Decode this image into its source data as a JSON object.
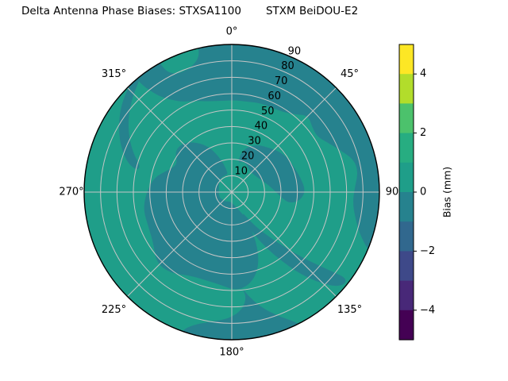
{
  "figure": {
    "title_left": "Delta Antenna Phase Biases: STXSA1100",
    "title_right": "STXM BeiDOU-E2",
    "background": "#ffffff"
  },
  "chart_data": {
    "type": "heatmap",
    "projection": "polar",
    "description": "Polar filled-contour (sky plot) of delta antenna phase bias vs azimuth (0-360 deg, clockwise from top) and radial coordinate 0-90. Nearly the whole disk lies in the 0..1 mm band (green) with large -1..0 mm regions (dark teal).",
    "units": "mm",
    "grid_on": true,
    "grid_color": "#c6c6c6",
    "outline_color": "#000000",
    "radial_axis": {
      "ticks": [
        10,
        20,
        30,
        40,
        50,
        60,
        70,
        80,
        90
      ],
      "max": 90,
      "label_angle_deg": 24
    },
    "angular_axis": {
      "ticks": [
        {
          "deg": 0,
          "label": "0°"
        },
        {
          "deg": 45,
          "label": "45°"
        },
        {
          "deg": 90,
          "label": "90"
        },
        {
          "deg": 135,
          "label": "135°"
        },
        {
          "deg": 180,
          "label": "180°"
        },
        {
          "deg": 225,
          "label": "225°"
        },
        {
          "deg": 270,
          "label": "270°"
        },
        {
          "deg": 315,
          "label": "315°"
        }
      ]
    },
    "colorbar": {
      "label": "Bias (mm)",
      "min": -5,
      "max": 5,
      "ticks": [
        {
          "value": 4,
          "label": "4"
        },
        {
          "value": 2,
          "label": "2"
        },
        {
          "value": 0,
          "label": "0"
        },
        {
          "value": -2,
          "label": "−2"
        },
        {
          "value": -4,
          "label": "−4"
        }
      ],
      "bands_top_to_bottom": [
        {
          "range": [
            4,
            5
          ],
          "color": "#fde725"
        },
        {
          "range": [
            3,
            4
          ],
          "color": "#b2dd2b"
        },
        {
          "range": [
            2,
            3
          ],
          "color": "#4cc26c"
        },
        {
          "range": [
            1,
            2
          ],
          "color": "#27ad81"
        },
        {
          "range": [
            0,
            1
          ],
          "color": "#1f9e89"
        },
        {
          "range": [
            -1,
            0
          ],
          "color": "#26828e"
        },
        {
          "range": [
            -2,
            -1
          ],
          "color": "#31688e"
        },
        {
          "range": [
            -3,
            -2
          ],
          "color": "#3e4989"
        },
        {
          "range": [
            -4,
            -3
          ],
          "color": "#482878"
        },
        {
          "range": [
            -5,
            -4
          ],
          "color": "#440154"
        }
      ]
    },
    "base_region": {
      "value_range": [
        0,
        1
      ],
      "color": "#1f9e89"
    },
    "regions": [
      {
        "name": "north-outer-ring",
        "value_range": [
          -1,
          0
        ],
        "color": "#26828e",
        "points": [
          [
            320,
            95
          ],
          [
            335,
            95
          ],
          [
            350,
            95
          ],
          [
            5,
            95
          ],
          [
            20,
            95
          ],
          [
            35,
            95
          ],
          [
            50,
            95
          ],
          [
            65,
            95
          ],
          [
            80,
            95
          ],
          [
            95,
            95
          ],
          [
            110,
            95
          ],
          [
            113,
            95
          ],
          [
            113,
            90
          ],
          [
            108,
            82
          ],
          [
            102,
            77
          ],
          [
            95,
            74
          ],
          [
            88,
            75
          ],
          [
            81,
            78
          ],
          [
            75,
            77
          ],
          [
            69,
            71
          ],
          [
            63,
            66
          ],
          [
            57,
            62
          ],
          [
            51,
            63
          ],
          [
            45,
            66
          ],
          [
            39,
            61
          ],
          [
            33,
            58
          ],
          [
            26,
            57
          ],
          [
            18,
            57
          ],
          [
            10,
            56
          ],
          [
            2,
            56
          ],
          [
            354,
            56
          ],
          [
            346,
            57
          ],
          [
            338,
            60
          ],
          [
            331,
            63
          ],
          [
            327,
            67
          ],
          [
            323,
            73
          ],
          [
            321,
            80
          ],
          [
            320,
            86
          ]
        ]
      },
      {
        "name": "north-rim-green-notch",
        "value_range": [
          0,
          1
        ],
        "color": "#1f9e89",
        "points": [
          [
            331,
            95
          ],
          [
            331,
            86
          ],
          [
            333,
            81
          ],
          [
            337,
            79
          ],
          [
            342,
            80
          ],
          [
            346,
            84
          ],
          [
            347,
            89
          ],
          [
            347,
            95
          ]
        ]
      },
      {
        "name": "northwest-finger",
        "value_range": [
          -1,
          0
        ],
        "color": "#26828e",
        "points": [
          [
            320,
            88
          ],
          [
            314,
            84
          ],
          [
            306,
            78
          ],
          [
            298,
            71
          ],
          [
            291,
            64
          ],
          [
            286,
            58
          ],
          [
            283,
            59
          ],
          [
            285,
            65
          ],
          [
            291,
            72
          ],
          [
            299,
            79
          ],
          [
            307,
            85
          ],
          [
            314,
            89
          ],
          [
            318,
            91
          ],
          [
            321,
            90
          ]
        ]
      },
      {
        "name": "central-west-blob",
        "value_range": [
          -1,
          0
        ],
        "color": "#26828e",
        "points": [
          [
            348,
            12
          ],
          [
            344,
            18
          ],
          [
            339,
            24
          ],
          [
            333,
            31
          ],
          [
            325,
            37
          ],
          [
            316,
            42
          ],
          [
            306,
            43
          ],
          [
            297,
            37
          ],
          [
            289,
            41
          ],
          [
            281,
            48
          ],
          [
            270,
            52
          ],
          [
            259,
            55
          ],
          [
            248,
            55
          ],
          [
            237,
            57
          ],
          [
            227,
            63
          ],
          [
            217,
            62
          ],
          [
            207,
            57
          ],
          [
            197,
            56
          ],
          [
            187,
            57
          ],
          [
            178,
            60
          ],
          [
            170,
            58
          ],
          [
            163,
            52
          ],
          [
            158,
            44
          ],
          [
            154,
            34
          ],
          [
            152,
            24
          ],
          [
            153,
            16
          ],
          [
            158,
            12
          ],
          [
            166,
            9
          ],
          [
            176,
            7
          ],
          [
            188,
            6
          ],
          [
            200,
            6
          ],
          [
            214,
            7
          ],
          [
            228,
            7
          ],
          [
            242,
            8
          ],
          [
            256,
            8
          ],
          [
            270,
            8
          ],
          [
            284,
            8
          ],
          [
            298,
            9
          ],
          [
            312,
            10
          ],
          [
            326,
            11
          ],
          [
            338,
            11
          ],
          [
            344,
            11
          ]
        ]
      },
      {
        "name": "south-rim-patch",
        "value_range": [
          -1,
          0
        ],
        "color": "#26828e",
        "points": [
          [
            176,
            56
          ],
          [
            171,
            64
          ],
          [
            166,
            72
          ],
          [
            160,
            80
          ],
          [
            154,
            88
          ],
          [
            151,
            95
          ],
          [
            160,
            95
          ],
          [
            170,
            95
          ],
          [
            180,
            95
          ],
          [
            190,
            95
          ],
          [
            199,
            95
          ],
          [
            200,
            90
          ],
          [
            196,
            84
          ],
          [
            189,
            80
          ],
          [
            181,
            77
          ],
          [
            175,
            72
          ],
          [
            172,
            65
          ],
          [
            174,
            58
          ]
        ]
      },
      {
        "name": "southeast-banana-arc",
        "value_range": [
          -1,
          0
        ],
        "color": "#26828e",
        "points": [
          [
            156,
            20
          ],
          [
            152,
            30
          ],
          [
            148,
            41
          ],
          [
            144,
            52
          ],
          [
            141,
            62
          ],
          [
            138,
            71
          ],
          [
            135,
            79
          ],
          [
            132,
            86
          ],
          [
            129,
            89
          ],
          [
            127,
            87
          ],
          [
            128,
            80
          ],
          [
            130,
            70
          ],
          [
            133,
            58
          ],
          [
            136,
            47
          ],
          [
            140,
            36
          ],
          [
            145,
            26
          ],
          [
            150,
            17
          ],
          [
            153,
            14
          ]
        ]
      },
      {
        "name": "center-east-patch",
        "value_range": [
          -1,
          0
        ],
        "color": "#26828e",
        "points": [
          [
            12,
            18
          ],
          [
            20,
            20
          ],
          [
            30,
            19
          ],
          [
            40,
            17
          ],
          [
            50,
            17
          ],
          [
            60,
            18
          ],
          [
            70,
            20
          ],
          [
            80,
            23
          ],
          [
            90,
            27
          ],
          [
            97,
            31
          ],
          [
            101,
            36
          ],
          [
            97,
            42
          ],
          [
            89,
            45
          ],
          [
            79,
            43
          ],
          [
            69,
            41
          ],
          [
            59,
            40
          ],
          [
            49,
            38
          ],
          [
            39,
            35
          ],
          [
            29,
            33
          ],
          [
            19,
            29
          ],
          [
            13,
            24
          ]
        ]
      }
    ]
  }
}
